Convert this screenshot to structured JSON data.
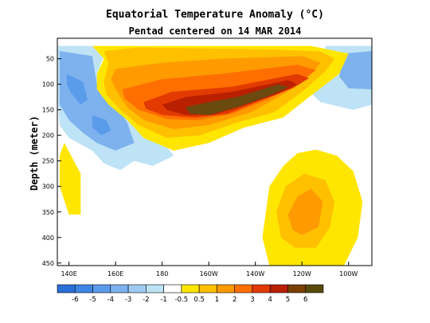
{
  "chart_data": {
    "type": "heatmap",
    "title": "Equatorial Temperature Anomaly (°C)",
    "subtitle": "Pentad centered on 14 MAR 2014",
    "xlabel": "",
    "ylabel": "Depth (meter)",
    "x_ticks": [
      {
        "value": 140,
        "label": "140E"
      },
      {
        "value": 160,
        "label": "160E"
      },
      {
        "value": 180,
        "label": "180"
      },
      {
        "value": 200,
        "label": "160W"
      },
      {
        "value": 220,
        "label": "140W"
      },
      {
        "value": 240,
        "label": "120W"
      },
      {
        "value": 260,
        "label": "100W"
      }
    ],
    "y_ticks": [
      50,
      100,
      150,
      200,
      250,
      300,
      350,
      400,
      450
    ],
    "xlim": [
      135,
      270
    ],
    "ylim": [
      455,
      10
    ],
    "colorbar": {
      "labels": [
        "-6",
        "-5",
        "-4",
        "-3",
        "-2",
        "-1",
        "-0.5",
        "0.5",
        "1",
        "2",
        "3",
        "4",
        "5",
        "6"
      ],
      "colors": [
        "#2a6fd6",
        "#3d86e5",
        "#5b9cea",
        "#7db2ee",
        "#9fcaf2",
        "#bfe3f6",
        "#ffffff",
        "#ffe600",
        "#ffc000",
        "#ff9a00",
        "#ff6e00",
        "#e23a00",
        "#b82000",
        "#7a3f00",
        "#5a4a0a"
      ]
    },
    "regions": [
      {
        "level": -1,
        "points": [
          [
            135,
            25
          ],
          [
            150,
            25
          ],
          [
            155,
            45
          ],
          [
            152,
            80
          ],
          [
            160,
            120
          ],
          [
            172,
            165
          ],
          [
            178,
            200
          ],
          [
            185,
            240
          ],
          [
            176,
            260
          ],
          [
            168,
            250
          ],
          [
            162,
            268
          ],
          [
            155,
            255
          ],
          [
            150,
            230
          ],
          [
            140,
            205
          ],
          [
            136,
            180
          ],
          [
            135,
            120
          ]
        ]
      },
      {
        "level": -1,
        "points": [
          [
            250,
            25
          ],
          [
            270,
            25
          ],
          [
            270,
            140
          ],
          [
            262,
            150
          ],
          [
            248,
            135
          ],
          [
            244,
            118
          ],
          [
            248,
            90
          ]
        ]
      },
      {
        "level": -2,
        "points": [
          [
            136,
            35
          ],
          [
            150,
            45
          ],
          [
            152,
            100
          ],
          [
            160,
            140
          ],
          [
            165,
            175
          ],
          [
            168,
            215
          ],
          [
            160,
            230
          ],
          [
            152,
            215
          ],
          [
            146,
            195
          ],
          [
            140,
            170
          ],
          [
            136,
            140
          ]
        ]
      },
      {
        "level": -2,
        "points": [
          [
            258,
            40
          ],
          [
            270,
            35
          ],
          [
            270,
            110
          ],
          [
            260,
            108
          ],
          [
            256,
            85
          ]
        ]
      },
      {
        "level": -3,
        "points": [
          [
            139,
            80
          ],
          [
            146,
            95
          ],
          [
            148,
            130
          ],
          [
            145,
            140
          ],
          [
            141,
            118
          ],
          [
            139,
            100
          ]
        ]
      },
      {
        "level": -3,
        "points": [
          [
            150,
            160
          ],
          [
            156,
            170
          ],
          [
            158,
            190
          ],
          [
            154,
            200
          ],
          [
            150,
            185
          ]
        ]
      },
      {
        "level": 0.5,
        "points": [
          [
            138,
            215
          ],
          [
            145,
            275
          ],
          [
            145,
            355
          ],
          [
            140,
            355
          ],
          [
            136,
            300
          ],
          [
            136,
            240
          ]
        ]
      },
      {
        "level": 0.5,
        "points": [
          [
            150,
            25
          ],
          [
            244,
            25
          ],
          [
            260,
            40
          ],
          [
            256,
            80
          ],
          [
            243,
            125
          ],
          [
            232,
            165
          ],
          [
            215,
            185
          ],
          [
            200,
            215
          ],
          [
            185,
            230
          ],
          [
            172,
            205
          ],
          [
            165,
            170
          ],
          [
            157,
            140
          ],
          [
            152,
            110
          ],
          [
            152,
            80
          ],
          [
            155,
            50
          ]
        ]
      },
      {
        "level": 0.5,
        "points": [
          [
            226,
            300
          ],
          [
            232,
            260
          ],
          [
            238,
            235
          ],
          [
            246,
            228
          ],
          [
            255,
            240
          ],
          [
            262,
            270
          ],
          [
            266,
            330
          ],
          [
            264,
            400
          ],
          [
            258,
            455
          ],
          [
            226,
            455
          ],
          [
            223,
            400
          ]
        ]
      },
      {
        "level": 1,
        "points": [
          [
            155,
            35
          ],
          [
            170,
            28
          ],
          [
            230,
            32
          ],
          [
            248,
            36
          ],
          [
            254,
            50
          ],
          [
            250,
            75
          ],
          [
            240,
            115
          ],
          [
            228,
            155
          ],
          [
            212,
            175
          ],
          [
            196,
            200
          ],
          [
            182,
            205
          ],
          [
            170,
            180
          ],
          [
            162,
            150
          ],
          [
            156,
            120
          ],
          [
            155,
            95
          ],
          [
            157,
            60
          ]
        ]
      },
      {
        "level": 1,
        "points": [
          [
            229,
            350
          ],
          [
            233,
            300
          ],
          [
            241,
            275
          ],
          [
            250,
            288
          ],
          [
            254,
            330
          ],
          [
            252,
            380
          ],
          [
            246,
            420
          ],
          [
            237,
            420
          ],
          [
            231,
            400
          ]
        ]
      },
      {
        "level": 2,
        "points": [
          [
            160,
            70
          ],
          [
            180,
            58
          ],
          [
            205,
            50
          ],
          [
            240,
            45
          ],
          [
            248,
            58
          ],
          [
            243,
            85
          ],
          [
            232,
            120
          ],
          [
            218,
            155
          ],
          [
            200,
            180
          ],
          [
            185,
            188
          ],
          [
            172,
            170
          ],
          [
            165,
            145
          ],
          [
            160,
            110
          ],
          [
            158,
            90
          ]
        ]
      },
      {
        "level": 2,
        "points": [
          [
            234,
            355
          ],
          [
            238,
            320
          ],
          [
            244,
            305
          ],
          [
            249,
            330
          ],
          [
            247,
            380
          ],
          [
            240,
            395
          ],
          [
            236,
            385
          ]
        ]
      },
      {
        "level": 3,
        "points": [
          [
            163,
            110
          ],
          [
            180,
            90
          ],
          [
            205,
            80
          ],
          [
            238,
            62
          ],
          [
            246,
            72
          ],
          [
            238,
            100
          ],
          [
            225,
            130
          ],
          [
            210,
            158
          ],
          [
            195,
            170
          ],
          [
            182,
            168
          ],
          [
            170,
            150
          ],
          [
            164,
            128
          ]
        ]
      },
      {
        "level": 4,
        "points": [
          [
            172,
            135
          ],
          [
            184,
            115
          ],
          [
            210,
            105
          ],
          [
            238,
            80
          ],
          [
            243,
            88
          ],
          [
            236,
            108
          ],
          [
            222,
            132
          ],
          [
            208,
            158
          ],
          [
            194,
            165
          ],
          [
            180,
            160
          ],
          [
            173,
            148
          ]
        ]
      },
      {
        "level": 5,
        "points": [
          [
            180,
            140
          ],
          [
            190,
            125
          ],
          [
            210,
            115
          ],
          [
            234,
            92
          ],
          [
            238,
            100
          ],
          [
            230,
            118
          ],
          [
            216,
            140
          ],
          [
            202,
            160
          ],
          [
            190,
            160
          ],
          [
            182,
            150
          ]
        ]
      },
      {
        "level": 6,
        "points": [
          [
            190,
            145
          ],
          [
            200,
            135
          ],
          [
            212,
            125
          ],
          [
            230,
            100
          ],
          [
            234,
            106
          ],
          [
            225,
            124
          ],
          [
            212,
            145
          ],
          [
            200,
            160
          ],
          [
            192,
            158
          ]
        ]
      }
    ]
  }
}
